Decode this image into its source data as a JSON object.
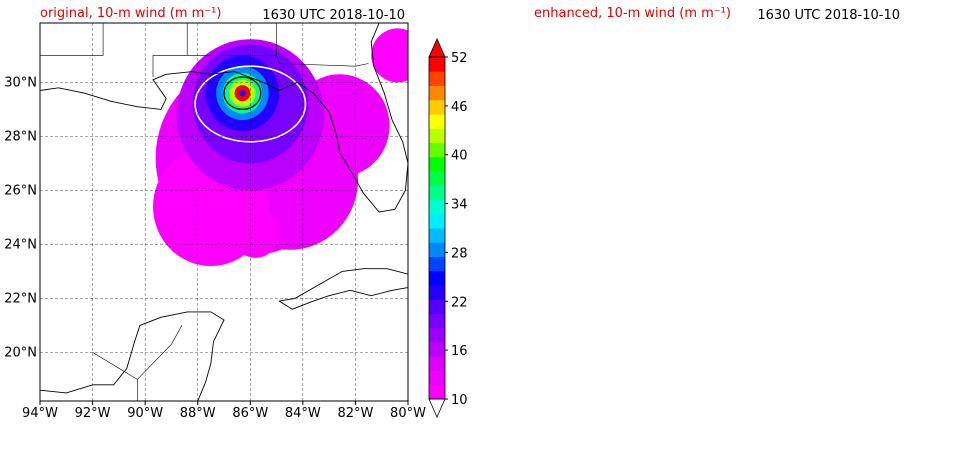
{
  "panels": [
    {
      "id": "original",
      "title_left": "original, 10-m wind (m m⁻¹)",
      "title_right": "1630 UTC 2018-10-10"
    },
    {
      "id": "enhanced",
      "title_left": "enhanced, 10-m wind (m m⁻¹)",
      "title_right": "1630 UTC 2018-10-10"
    }
  ],
  "lon_ticks": [
    "94°W",
    "92°W",
    "90°W",
    "88°W",
    "86°W",
    "84°W",
    "82°W",
    "80°W"
  ],
  "lat_ticks": [
    "20°N",
    "22°N",
    "24°N",
    "26°N",
    "28°N",
    "30°N"
  ],
  "colorbar": {
    "ticks": [
      "10",
      "16",
      "22",
      "28",
      "34",
      "40",
      "46",
      "52"
    ],
    "min": 10,
    "max": 52,
    "step": 2,
    "colors": [
      "#ff00ff",
      "#ee00ff",
      "#dd00ff",
      "#bb00ff",
      "#9900ff",
      "#7700ff",
      "#5500ff",
      "#2200ff",
      "#0000ff",
      "#0044ff",
      "#0088ff",
      "#00bbff",
      "#00eeff",
      "#00ffcc",
      "#00ff88",
      "#00ff44",
      "#00ff00",
      "#66ff00",
      "#bbff00",
      "#ffff00",
      "#ffcc00",
      "#ff8800",
      "#ff4400",
      "#ff0000"
    ],
    "extend_high_color": "#ff0000",
    "extend_low_color": "#ffffff"
  },
  "map_extent": {
    "lon_min": -94,
    "lon_max": -80,
    "lat_min": 18.2,
    "lat_max": 32.2
  },
  "storm_center": {
    "lon": -86.3,
    "lat": 29.6
  }
}
